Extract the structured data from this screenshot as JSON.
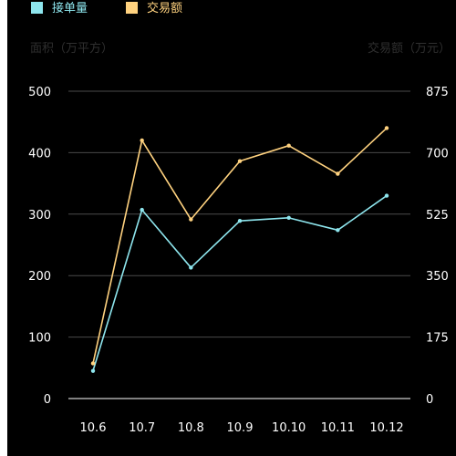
{
  "chart_data": {
    "type": "line",
    "categories": [
      "10.6",
      "10.7",
      "10.8",
      "10.9",
      "10.10",
      "10.11",
      "10.12"
    ],
    "series": [
      {
        "name": "接单量",
        "axis": "left",
        "color": "#8ee6ee",
        "values": [
          45,
          307,
          213,
          289,
          294,
          274,
          330
        ]
      },
      {
        "name": "交易额",
        "axis": "right",
        "color": "#ffd27f",
        "values": [
          100,
          735,
          510,
          676,
          720,
          640,
          770
        ]
      }
    ],
    "y_left": {
      "label": "面积（万平方）",
      "range": [
        0,
        500
      ],
      "ticks": [
        "0",
        "100",
        "200",
        "300",
        "400",
        "500"
      ]
    },
    "y_right": {
      "label": "交易额（万元）",
      "range": [
        0,
        875
      ],
      "ticks": [
        "0",
        "175",
        "350",
        "525",
        "700",
        "875"
      ]
    },
    "grid": true,
    "legend_position": "top-left"
  }
}
